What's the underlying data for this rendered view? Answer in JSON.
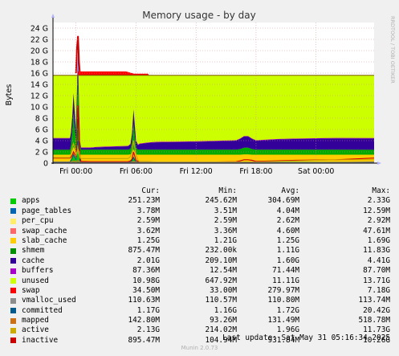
{
  "chart_data": {
    "type": "area",
    "title": "Memory usage - by day",
    "ylabel": "Bytes",
    "watermark": "RRDTOOL / TOBI OETIKER",
    "yticks": [
      "0",
      "2 G",
      "4 G",
      "6 G",
      "8 G",
      "10 G",
      "12 G",
      "14 G",
      "16 G",
      "18 G",
      "20 G",
      "22 G",
      "24 G"
    ],
    "ylim": [
      0,
      25
    ],
    "xticks": [
      "Fri 00:00",
      "Fri 06:00",
      "Fri 12:00",
      "Fri 18:00",
      "Sat 00:00"
    ],
    "xtick_hours": [
      0,
      6,
      12,
      18,
      24
    ],
    "xlim": [
      -2.3,
      29.8
    ],
    "total_gb": 15.6,
    "x": [
      -2.3,
      -0.6,
      -0.5,
      -0.35,
      -0.25,
      -0.1,
      0,
      0.1,
      0.2,
      0.3,
      0.4,
      0.5,
      1.5,
      2,
      3.5,
      5.2,
      5.45,
      5.6,
      5.75,
      6.0,
      6.2,
      6.35,
      7.2,
      8,
      12,
      14,
      16,
      16.4,
      16.8,
      17.0,
      17.2,
      17.6,
      18,
      20,
      22,
      26,
      29.8
    ],
    "series": [
      {
        "name": "inactive",
        "color": "#cc0000",
        "values": [
          0.9,
          0.9,
          1.0,
          1.5,
          2.0,
          1.5,
          1.2,
          3.5,
          10.26,
          6.0,
          1.0,
          0.3,
          0.25,
          0.25,
          0.25,
          0.25,
          0.4,
          0.7,
          2.0,
          0.5,
          0.3,
          0.2,
          0.2,
          0.2,
          0.2,
          0.2,
          0.25,
          0.4,
          0.6,
          0.6,
          0.6,
          0.5,
          0.3,
          0.4,
          0.5,
          0.6,
          0.9
        ]
      },
      {
        "name": "active",
        "color": "#ccaa00",
        "values": [
          1.0,
          1.0,
          1.5,
          3.0,
          3.5,
          2.5,
          1.5,
          2.0,
          2.5,
          2.0,
          1.0,
          0.8,
          0.8,
          0.8,
          0.8,
          0.8,
          1.2,
          2.0,
          4.0,
          1.5,
          0.5,
          0.3,
          0.3,
          0.2,
          0.2,
          0.2,
          0.2,
          0.2,
          0.2,
          0.2,
          0.2,
          0.2,
          0.2,
          0.3,
          0.4,
          0.6,
          0.6
        ]
      },
      {
        "name": "mapped",
        "color": "#cc7016",
        "values": [
          0.14,
          0.14,
          0.2,
          0.3,
          0.4,
          0.3,
          0.2,
          0.3,
          0.5,
          0.3,
          0.15,
          0.1,
          0.1,
          0.1,
          0.1,
          0.1,
          0.1,
          0.2,
          0.3,
          0.15,
          0.1,
          0.1,
          0.1,
          0.1,
          0.1,
          0.1,
          0.1,
          0.1,
          0.1,
          0.1,
          0.1,
          0.1,
          0.1,
          0.1,
          0.1,
          0.14,
          0.14
        ]
      },
      {
        "name": "committed",
        "color": "#005a8c",
        "values": [
          0.2,
          0.2,
          0.5,
          1.0,
          1.5,
          1.0,
          0.6,
          3.0,
          4.0,
          2.0,
          0.5,
          0.1,
          0.1,
          0.1,
          0.1,
          0.1,
          0.2,
          0.5,
          1.0,
          0.2,
          0.1,
          0.1,
          0.1,
          0.1,
          0.1,
          0.1,
          0.1,
          0.1,
          0.2,
          0.2,
          0.2,
          0.1,
          0.1,
          0.1,
          0.1,
          0.1,
          0.2
        ]
      },
      {
        "name": "vmalloc_used",
        "color": "#8c8c8c",
        "values": [
          0.11,
          0.11,
          0.11,
          0.11,
          0.11,
          0.11,
          0.11,
          0.11,
          0.11,
          0.11,
          0.11,
          0.11,
          0.11,
          0.11,
          0.11,
          0.11,
          0.11,
          0.11,
          0.11,
          0.11,
          0.11,
          0.11,
          0.11,
          0.11,
          0.11,
          0.11,
          0.11,
          0.11,
          0.11,
          0.11,
          0.11,
          0.11,
          0.11,
          0.11,
          0.11,
          0.11,
          0.11
        ]
      },
      {
        "name": "swap",
        "color": "#ff0000",
        "values": [
          0.03,
          0.03,
          0.03,
          0.03,
          0.03,
          0.03,
          0.03,
          0.03,
          7.18,
          1.0,
          0.03,
          0.03,
          0.03,
          0.03,
          0.03,
          0.03,
          0.03,
          0.03,
          0.03,
          0.03,
          0.03,
          0.03,
          0.03,
          0.03,
          0.03,
          0.03,
          0.03,
          0.03,
          0.03,
          0.03,
          0.03,
          0.03,
          0.03,
          0.03,
          0.03,
          0.03,
          0.03
        ]
      },
      {
        "name": "buffers",
        "color": "#aa00cc",
        "values": [
          0.08,
          0.08,
          0.08,
          0.08,
          0.08,
          0.08,
          0.08,
          0.08,
          0.08,
          0.08,
          0.08,
          0.08,
          0.08,
          0.08,
          0.08,
          0.08,
          0.08,
          0.08,
          0.08,
          0.08,
          0.08,
          0.08,
          0.08,
          0.08,
          0.08,
          0.08,
          0.08,
          0.08,
          0.08,
          0.08,
          0.08,
          0.08,
          0.08,
          0.08,
          0.08,
          0.08,
          0.08
        ]
      },
      {
        "name": "cache",
        "color": "#330099",
        "values": [
          2.0,
          2.0,
          2.2,
          2.5,
          3.5,
          2.5,
          2.0,
          4.0,
          4.41,
          3.0,
          0.8,
          0.3,
          0.3,
          0.4,
          0.5,
          0.6,
          0.8,
          1.5,
          2.5,
          1.2,
          0.8,
          1.0,
          1.2,
          1.3,
          1.4,
          1.5,
          1.6,
          1.8,
          2.0,
          2.0,
          2.0,
          1.8,
          1.6,
          1.8,
          1.9,
          2.0,
          2.0
        ]
      },
      {
        "name": "shmem",
        "color": "#00aa00",
        "values": [
          0.88,
          0.88,
          1.5,
          4.0,
          6.0,
          3.5,
          2.0,
          6.0,
          11.83,
          5.0,
          1.5,
          0.9,
          0.9,
          0.9,
          0.9,
          0.9,
          1.0,
          2.0,
          4.5,
          1.2,
          0.9,
          0.9,
          0.9,
          0.9,
          0.9,
          0.9,
          0.9,
          1.0,
          1.2,
          1.2,
          1.2,
          1.0,
          0.9,
          0.9,
          0.9,
          0.9,
          0.88
        ]
      },
      {
        "name": "slab_cache",
        "color": "#ffcc00",
        "values": [
          1.25,
          1.25,
          1.25,
          1.3,
          1.4,
          1.3,
          1.25,
          1.3,
          1.69,
          1.3,
          1.25,
          1.25,
          1.25,
          1.25,
          1.25,
          1.25,
          1.25,
          1.25,
          1.3,
          1.25,
          1.25,
          1.25,
          1.25,
          1.25,
          1.25,
          1.25,
          1.25,
          1.25,
          1.25,
          1.25,
          1.25,
          1.25,
          1.25,
          1.25,
          1.25,
          1.25,
          1.25
        ]
      },
      {
        "name": "swap_cache",
        "color": "#ff6666",
        "values": [
          0,
          0,
          0,
          0,
          0,
          0,
          0,
          0,
          0.05,
          0.02,
          0,
          0,
          0,
          0,
          0,
          0,
          0,
          0,
          0,
          0,
          0,
          0,
          0,
          0,
          0,
          0,
          0,
          0,
          0,
          0,
          0,
          0,
          0,
          0,
          0,
          0,
          0
        ]
      },
      {
        "name": "per_cpu",
        "color": "#ffee66",
        "values": [
          0,
          0,
          0,
          0,
          0,
          0,
          0,
          0,
          0,
          0,
          0,
          0,
          0,
          0,
          0,
          0,
          0,
          0,
          0,
          0,
          0,
          0,
          0,
          0,
          0,
          0,
          0,
          0,
          0,
          0,
          0,
          0,
          0,
          0,
          0,
          0,
          0
        ]
      },
      {
        "name": "page_tables",
        "color": "#0066b3",
        "values": [
          0,
          0,
          0,
          0,
          0,
          0,
          0,
          0,
          0.01,
          0,
          0,
          0,
          0,
          0,
          0,
          0,
          0,
          0,
          0,
          0,
          0,
          0,
          0,
          0,
          0,
          0,
          0,
          0,
          0,
          0,
          0,
          0,
          0,
          0,
          0,
          0,
          0
        ]
      },
      {
        "name": "apps",
        "color": "#00cc00",
        "values": [
          0.25,
          0.25,
          0.5,
          1.0,
          1.5,
          1.0,
          0.5,
          1.5,
          2.33,
          1.0,
          0.3,
          0.25,
          0.25,
          0.25,
          0.25,
          0.25,
          0.3,
          0.5,
          1.2,
          0.3,
          0.25,
          0.25,
          0.25,
          0.25,
          0.25,
          0.25,
          0.25,
          0.25,
          0.3,
          0.3,
          0.3,
          0.25,
          0.25,
          0.25,
          0.25,
          0.25,
          0.25
        ]
      }
    ],
    "swap_overlay": {
      "name": "swap",
      "color": "#ff0000",
      "x": [
        0.2,
        1.5,
        3.5,
        4.0,
        5.0,
        5.8,
        6.0,
        7.2,
        7.3
      ],
      "top": [
        16.3,
        16.3,
        16.3,
        16.3,
        16.3,
        15.9,
        15.9,
        15.9,
        15.6
      ]
    },
    "legend": {
      "headers": [
        "Cur:",
        "Min:",
        "Avg:",
        "Max:"
      ],
      "rows": [
        {
          "name": "apps",
          "color": "#00cc00",
          "cur": "251.23M",
          "min": "245.62M",
          "avg": "304.69M",
          "max": "2.33G"
        },
        {
          "name": "page_tables",
          "color": "#0066b3",
          "cur": "3.78M",
          "min": "3.51M",
          "avg": "4.04M",
          "max": "12.59M"
        },
        {
          "name": "per_cpu",
          "color": "#ffee66",
          "cur": "2.59M",
          "min": "2.59M",
          "avg": "2.62M",
          "max": "2.92M"
        },
        {
          "name": "swap_cache",
          "color": "#ff6666",
          "cur": "3.62M",
          "min": "3.36M",
          "avg": "4.60M",
          "max": "47.61M"
        },
        {
          "name": "slab_cache",
          "color": "#ffcc00",
          "cur": "1.25G",
          "min": "1.21G",
          "avg": "1.25G",
          "max": "1.69G"
        },
        {
          "name": "shmem",
          "color": "#008f00",
          "cur": "875.47M",
          "min": "232.00k",
          "avg": "1.11G",
          "max": "11.83G"
        },
        {
          "name": "cache",
          "color": "#330099",
          "cur": "2.01G",
          "min": "209.10M",
          "avg": "1.60G",
          "max": "4.41G"
        },
        {
          "name": "buffers",
          "color": "#aa00cc",
          "cur": "87.36M",
          "min": "12.54M",
          "avg": "71.44M",
          "max": "87.70M"
        },
        {
          "name": "unused",
          "color": "#ccff00",
          "cur": "10.98G",
          "min": "647.92M",
          "avg": "11.11G",
          "max": "13.71G"
        },
        {
          "name": "swap",
          "color": "#ff0000",
          "cur": "34.50M",
          "min": "33.00M",
          "avg": "279.97M",
          "max": "7.18G"
        },
        {
          "name": "vmalloc_used",
          "color": "#8c8c8c",
          "cur": "110.63M",
          "min": "110.57M",
          "avg": "110.80M",
          "max": "113.74M"
        },
        {
          "name": "committed",
          "color": "#005a8c",
          "cur": "1.17G",
          "min": "1.16G",
          "avg": "1.72G",
          "max": "20.42G"
        },
        {
          "name": "mapped",
          "color": "#cc7016",
          "cur": "142.80M",
          "min": "93.26M",
          "avg": "131.49M",
          "max": "518.78M"
        },
        {
          "name": "active",
          "color": "#ccaa00",
          "cur": "2.13G",
          "min": "214.02M",
          "avg": "1.96G",
          "max": "11.73G"
        },
        {
          "name": "inactive",
          "color": "#cc0000",
          "cur": "895.47M",
          "min": "104.94M",
          "avg": "931.84M",
          "max": "10.26G"
        }
      ]
    },
    "unused_color": "#ccff00",
    "committed_peak": {
      "x": [
        0.0,
        0.1,
        0.2,
        0.3,
        0.4
      ],
      "top": [
        16,
        20.42,
        22.6,
        18,
        15.6
      ]
    }
  },
  "last_update": "Last update: Sat May 31 05:16:34 2025",
  "footer": "Munin 2.0.73"
}
